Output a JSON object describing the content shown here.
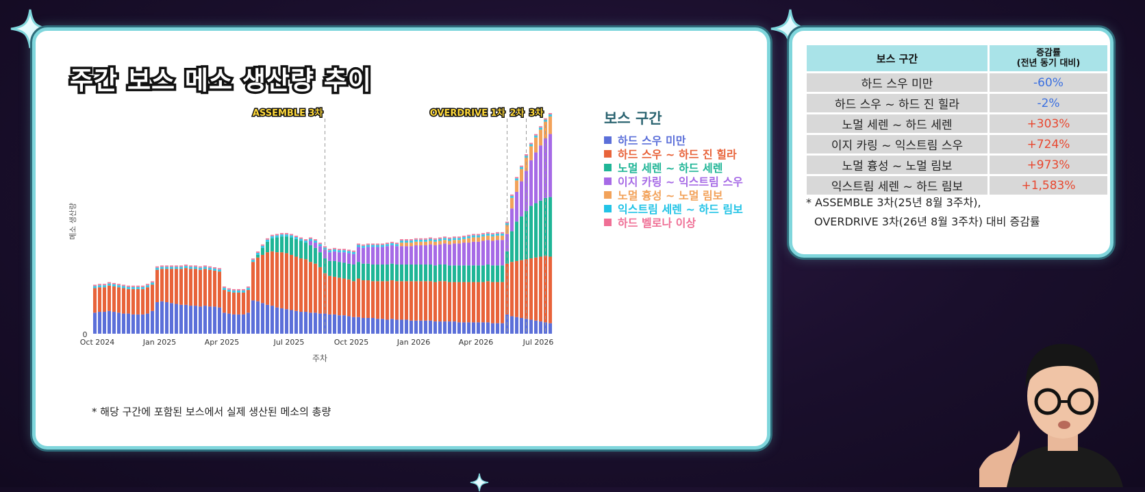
{
  "title": "주간 보스 메소 생산량 추이",
  "footnote": "* 해당 구간에 포함된 보스에서 실제 생산된 메소의 총량",
  "chart_data": {
    "type": "bar",
    "stacked": true,
    "xlabel": "주차",
    "ylabel": "메소 생산량",
    "x_ticks": [
      "Oct 2024",
      "Jan 2025",
      "Apr 2025",
      "Jul 2025",
      "Oct 2025",
      "Jan 2026",
      "Apr 2026",
      "Jul 2026"
    ],
    "y_ticks": [
      "0"
    ],
    "legend": {
      "title": "보스 구간",
      "placement": "right"
    },
    "series": [
      {
        "name": "하드 스우 미만",
        "color": "#5b6fd9",
        "values": [
          24,
          25,
          25,
          26,
          25,
          24,
          23,
          23,
          22,
          22,
          22,
          23,
          26,
          36,
          37,
          36,
          35,
          34,
          33,
          33,
          32,
          32,
          31,
          32,
          31,
          31,
          30,
          24,
          23,
          22,
          22,
          22,
          24,
          38,
          37,
          35,
          33,
          32,
          30,
          29,
          28,
          27,
          26,
          25,
          25,
          24,
          24,
          23,
          23,
          22,
          22,
          21,
          21,
          20,
          19,
          19,
          18,
          18,
          18,
          17,
          17,
          16,
          17,
          16,
          16,
          16,
          15,
          15,
          15,
          15,
          15,
          14,
          14,
          14,
          14,
          14,
          13,
          13,
          13,
          13,
          13,
          13,
          13,
          12,
          12,
          12,
          22,
          20,
          19,
          18,
          17,
          16,
          15,
          14,
          13,
          12
        ]
      },
      {
        "name": "하드 스우 ~ 하드 진 힐라",
        "color": "#e8633a",
        "values": [
          28,
          28,
          28,
          29,
          29,
          29,
          29,
          28,
          29,
          29,
          29,
          30,
          30,
          37,
          37,
          38,
          39,
          40,
          41,
          42,
          42,
          42,
          42,
          42,
          42,
          41,
          41,
          26,
          25,
          25,
          25,
          25,
          26,
          44,
          50,
          55,
          60,
          62,
          63,
          64,
          64,
          63,
          62,
          61,
          60,
          58,
          56,
          53,
          46,
          44,
          43,
          43,
          42,
          42,
          41,
          44,
          43,
          43,
          42,
          43,
          43,
          44,
          44,
          44,
          44,
          44,
          45,
          45,
          45,
          45,
          45,
          45,
          46,
          46,
          45,
          45,
          46,
          46,
          46,
          46,
          46,
          46,
          47,
          47,
          47,
          47,
          58,
          62,
          64,
          66,
          68,
          70,
          72,
          74,
          76,
          76
        ]
      },
      {
        "name": "노멀 세렌 ~ 하드 세렌",
        "color": "#1fb596",
        "values": [
          0,
          0,
          0,
          0,
          0,
          0,
          0,
          0,
          0,
          0,
          0,
          0,
          0,
          0,
          0,
          0,
          0,
          0,
          0,
          0,
          0,
          0,
          0,
          0,
          0,
          0,
          0,
          0,
          0,
          0,
          0,
          0,
          0,
          0,
          3,
          8,
          12,
          15,
          17,
          18,
          19,
          20,
          20,
          20,
          19,
          19,
          18,
          17,
          17,
          17,
          18,
          18,
          18,
          18,
          19,
          19,
          19,
          19,
          19,
          19,
          19,
          19,
          19,
          19,
          19,
          19,
          19,
          19,
          19,
          19,
          19,
          19,
          19,
          19,
          19,
          19,
          19,
          19,
          19,
          19,
          19,
          19,
          19,
          19,
          19,
          19,
          14,
          35,
          45,
          50,
          55,
          60,
          62,
          64,
          66,
          68
        ]
      },
      {
        "name": "이지 카링 ~ 익스트림 스우",
        "color": "#a66ae6",
        "values": [
          0,
          0,
          0,
          0,
          0,
          0,
          0,
          0,
          0,
          0,
          0,
          0,
          0,
          0,
          0,
          0,
          0,
          0,
          0,
          0,
          0,
          0,
          0,
          0,
          0,
          0,
          0,
          0,
          0,
          0,
          0,
          0,
          0,
          0,
          0,
          0,
          0,
          0,
          0,
          0,
          0,
          0,
          0,
          0,
          0,
          5,
          6,
          7,
          10,
          10,
          11,
          11,
          12,
          12,
          12,
          17,
          18,
          19,
          20,
          20,
          20,
          21,
          21,
          21,
          21,
          21,
          21,
          22,
          22,
          22,
          23,
          23,
          23,
          24,
          24,
          25,
          25,
          26,
          26,
          27,
          27,
          28,
          28,
          28,
          29,
          29,
          20,
          26,
          34,
          40,
          46,
          52,
          58,
          63,
          68,
          72
        ]
      },
      {
        "name": "노멀 흉성 ~ 노멀 림보",
        "color": "#f2a25a",
        "values": [
          0,
          0,
          0,
          0,
          0,
          0,
          0,
          0,
          0,
          0,
          0,
          0,
          0,
          0,
          0,
          0,
          0,
          0,
          0,
          0,
          0,
          0,
          0,
          0,
          0,
          0,
          0,
          0,
          0,
          0,
          0,
          0,
          0,
          0,
          0,
          0,
          0,
          0,
          0,
          0,
          0,
          0,
          0,
          0,
          0,
          0,
          0,
          0,
          0,
          0,
          0,
          0,
          0,
          0,
          0,
          0,
          0,
          0,
          0,
          0,
          0,
          0,
          0,
          0,
          4,
          4,
          4,
          4,
          4,
          4,
          4,
          4,
          4,
          4,
          4,
          4,
          4,
          4,
          5,
          5,
          5,
          5,
          5,
          5,
          5,
          5,
          10,
          12,
          13,
          14,
          15,
          16,
          17,
          18,
          19,
          20
        ]
      },
      {
        "name": "익스트림 세렌 ~ 하드 림보",
        "color": "#22c3e6",
        "values": [
          0,
          0,
          0,
          0,
          0,
          0,
          0,
          0,
          0,
          0,
          0,
          0,
          0,
          0,
          0,
          0,
          0,
          0,
          0,
          0,
          0,
          0,
          0,
          0,
          0,
          0,
          0,
          0,
          0,
          0,
          0,
          0,
          0,
          0,
          0,
          0,
          0,
          0,
          0,
          0,
          0,
          0,
          0,
          0,
          0,
          0,
          0,
          0,
          0,
          0,
          0,
          0,
          0,
          0,
          0,
          0,
          0,
          0,
          0,
          0,
          0,
          0,
          0,
          0,
          0,
          0,
          0,
          0,
          0,
          0,
          0,
          0,
          0,
          0,
          0,
          0,
          0,
          0,
          0,
          0,
          0,
          0,
          0,
          0,
          0,
          0,
          0,
          0,
          0,
          0,
          0,
          0,
          0,
          0,
          0,
          0
        ]
      },
      {
        "name": "하드 벨로나 이상",
        "color": "#ef6f95",
        "values": [
          0,
          0,
          0,
          0,
          0,
          0,
          0,
          0,
          0,
          0,
          0,
          0,
          0,
          0,
          0,
          0,
          0,
          0,
          0,
          0,
          0,
          0,
          0,
          0,
          0,
          0,
          0,
          0,
          0,
          0,
          0,
          0,
          0,
          0,
          0,
          0,
          0,
          0,
          0,
          0,
          0,
          0,
          0,
          0,
          0,
          0,
          0,
          0,
          0,
          0,
          0,
          0,
          0,
          0,
          0,
          0,
          0,
          0,
          0,
          0,
          0,
          0,
          0,
          0,
          0,
          0,
          0,
          0,
          0,
          0,
          0,
          0,
          0,
          0,
          0,
          0,
          0,
          0,
          0,
          0,
          0,
          0,
          0,
          0,
          0,
          0,
          0,
          0,
          0,
          0,
          0,
          0,
          0,
          0,
          0,
          0
        ]
      }
    ],
    "annotations": [
      {
        "label": "ASSEMBLE 3차",
        "bar_index": 48
      },
      {
        "label": "OVERDRIVE 1차",
        "bar_index": 86
      },
      {
        "label": "2차",
        "bar_index": 90
      },
      {
        "label": "3차",
        "bar_index": 94
      }
    ]
  },
  "table": {
    "headers": [
      "보스 구간",
      "증감률",
      "(전년 동기 대비)"
    ],
    "rows": [
      {
        "name": "하드 스우 미만",
        "rate": "-60%"
      },
      {
        "name": "하드 스우 ~ 하드 진 힐라",
        "rate": "-2%"
      },
      {
        "name": "노멀 세렌 ~ 하드 세렌",
        "rate": "+303%"
      },
      {
        "name": "이지 카링 ~ 익스트림 스우",
        "rate": "+724%"
      },
      {
        "name": "노멀 흉성 ~  노멀 림보",
        "rate": "+973%"
      },
      {
        "name": "익스트림 세렌 ~ 하드 림보",
        "rate": "+1,583%"
      }
    ],
    "note_line1": "* ASSEMBLE 3차(25년 8월 3주차),",
    "note_line2": "OVERDRIVE 3차(26년 8월 3주차) 대비 증감률"
  }
}
